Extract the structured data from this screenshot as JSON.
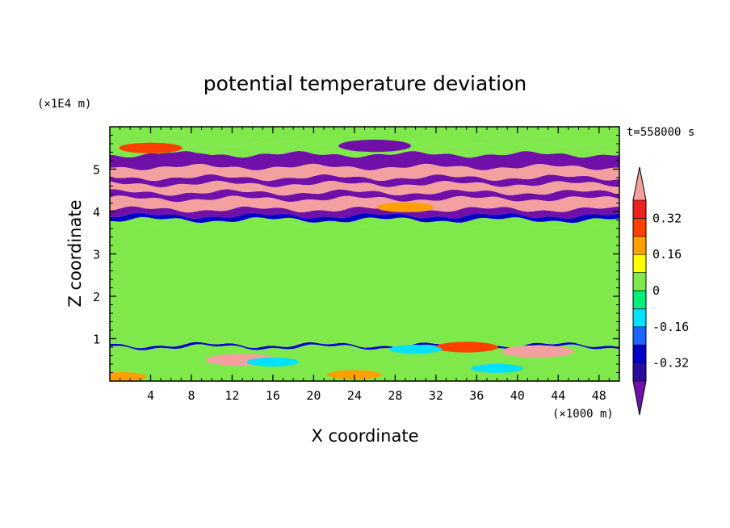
{
  "chart_data": {
    "type": "heatmap",
    "title": "potential temperature deviation",
    "xlabel": "X coordinate",
    "ylabel": "Z coordinate",
    "x_unit": "(×1000 m)",
    "y_unit": "(×1E4 m)",
    "time_label": "t=558000 s",
    "xlim": [
      0,
      50
    ],
    "ylim": [
      0,
      6
    ],
    "x_ticks": [
      4,
      8,
      12,
      16,
      20,
      24,
      28,
      32,
      36,
      40,
      44,
      48
    ],
    "y_ticks": [
      1,
      2,
      3,
      4,
      5
    ],
    "x_tick_labels": [
      "4",
      "8",
      "12",
      "16",
      "20",
      "24",
      "28",
      "32",
      "36",
      "40",
      "44",
      "48"
    ],
    "y_tick_labels": [
      "1",
      "2",
      "3",
      "4",
      "5"
    ],
    "colorbar": {
      "labels": [
        "0.32",
        "0.16",
        "0",
        "-0.16",
        "-0.32"
      ],
      "label_values": [
        0.32,
        0.16,
        0,
        -0.16,
        -0.32
      ],
      "levels": [
        -0.4,
        -0.32,
        -0.24,
        -0.16,
        -0.08,
        0,
        0.08,
        0.16,
        0.24,
        0.32,
        0.4
      ],
      "colors": [
        "#7010a8",
        "#2a0ca0",
        "#0000c8",
        "#1e64ff",
        "#00e0ff",
        "#00f07a",
        "#7fe84a",
        "#ffff00",
        "#ffa000",
        "#ff4000",
        "#f02020",
        "#f4a0a0"
      ]
    },
    "bands": [
      {
        "z": [
          0.0,
          0.8
        ],
        "value": 0.02
      },
      {
        "z": [
          0.8,
          0.85
        ],
        "value": -0.3
      },
      {
        "z": [
          0.85,
          3.65
        ],
        "value": 0.04
      },
      {
        "z": [
          3.65,
          3.8
        ],
        "value": 0.0
      },
      {
        "z": [
          3.8,
          3.9
        ],
        "value": -0.3
      },
      {
        "z": [
          3.9,
          4.05
        ],
        "value": -0.45
      },
      {
        "z": [
          4.05,
          4.3
        ],
        "value": 0.45
      },
      {
        "z": [
          4.3,
          4.45
        ],
        "value": -0.45
      },
      {
        "z": [
          4.45,
          4.65
        ],
        "value": 0.45
      },
      {
        "z": [
          4.65,
          4.8
        ],
        "value": -0.45
      },
      {
        "z": [
          4.8,
          5.05
        ],
        "value": 0.45
      },
      {
        "z": [
          5.05,
          5.35
        ],
        "value": -0.45
      },
      {
        "z": [
          5.35,
          5.6
        ],
        "value": 0.02
      },
      {
        "z": [
          5.6,
          6.0
        ],
        "value": 0.04
      }
    ],
    "blobs": [
      {
        "x": 13,
        "z": 0.5,
        "value": 0.45
      },
      {
        "x": 42,
        "z": 0.7,
        "value": 0.45
      },
      {
        "x": 35,
        "z": 0.8,
        "value": 0.3
      },
      {
        "x": 4,
        "z": 5.5,
        "value": 0.3
      },
      {
        "x": 29,
        "z": 4.1,
        "value": 0.2
      },
      {
        "x": 0.8,
        "z": 0.1,
        "value": 0.2
      },
      {
        "x": 24,
        "z": 0.15,
        "value": 0.16
      },
      {
        "x": 7,
        "z": 5.25,
        "value": -0.45
      },
      {
        "x": 26,
        "z": 5.55,
        "value": -0.45
      },
      {
        "x": 16,
        "z": 0.45,
        "value": -0.12
      },
      {
        "x": 38,
        "z": 0.3,
        "value": -0.12
      },
      {
        "x": 30,
        "z": 0.75,
        "value": -0.12
      }
    ]
  }
}
